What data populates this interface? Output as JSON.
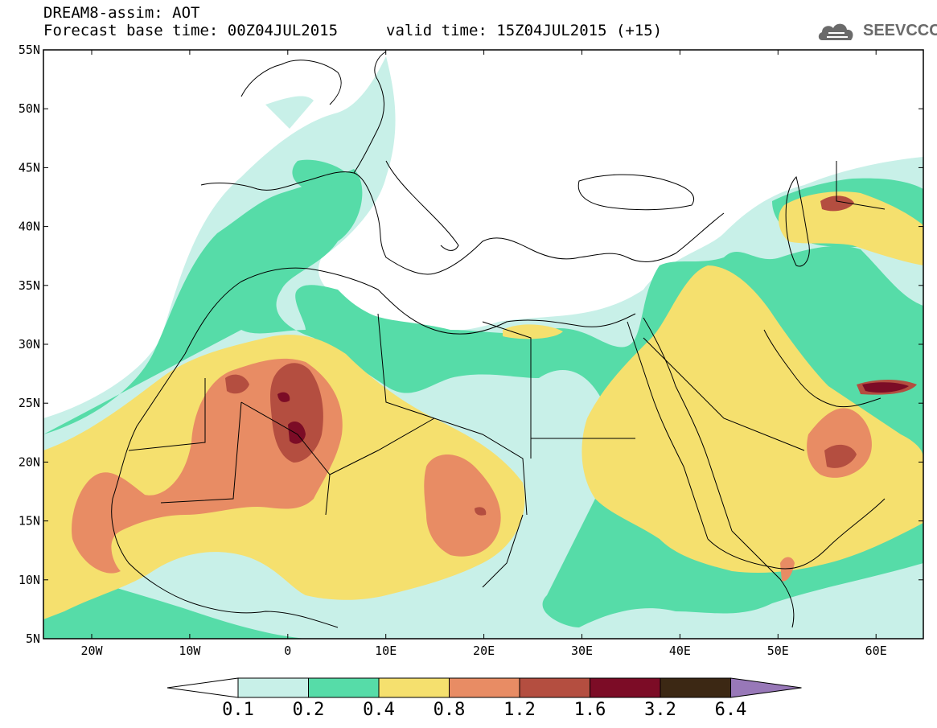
{
  "header": {
    "line1": "DREAM8-assim: AOT",
    "line2_left": "Forecast base time: 00Z04JUL2015",
    "line2_right": "valid time: 15Z04JUL2015 (+15)"
  },
  "logo": {
    "text": "SEEVCCC",
    "icon": "cloud-icon"
  },
  "map": {
    "lat_labels": [
      "55N",
      "50N",
      "45N",
      "40N",
      "35N",
      "30N",
      "25N",
      "20N",
      "15N",
      "10N",
      "5N"
    ],
    "lon_labels": [
      "20W",
      "10W",
      "0",
      "10E",
      "20E",
      "30E",
      "40E",
      "50E",
      "60E"
    ]
  },
  "colorbar": {
    "labels": [
      "0.1",
      "0.2",
      "0.4",
      "0.8",
      "1.2",
      "1.6",
      "3.2",
      "6.4"
    ],
    "colors": [
      "#c8f0e8",
      "#56dca8",
      "#f5e06e",
      "#e88c64",
      "#b44e40",
      "#7c0c26",
      "#3c2814",
      "#9878b8"
    ]
  }
}
